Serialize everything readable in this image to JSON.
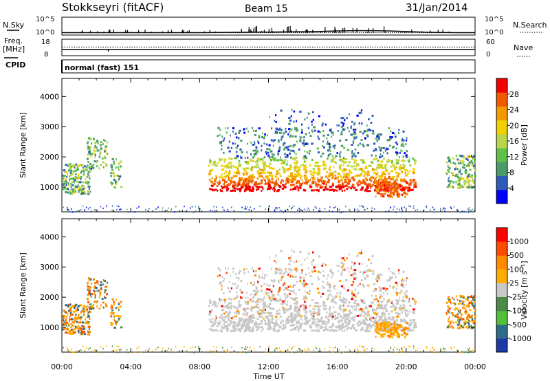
{
  "header": {
    "station": "Stokkseyri (fitACF)",
    "beam": "Beam 15",
    "date": "31/Jan/2014"
  },
  "left_labels": {
    "nsky": "N.Sky",
    "freq": "Freq.",
    "freq_unit": "[MHz]",
    "cpid": "CPID"
  },
  "right_labels": {
    "nsearch": "N.Search",
    "nave": "Nave"
  },
  "cpid_text": "normal (fast) 151",
  "colors": {
    "power": [
      "#0000ff",
      "#2e5bb8",
      "#4a9a6a",
      "#5fc04a",
      "#b7d64b",
      "#f2d000",
      "#f29a00",
      "#f25a00",
      "#f20000"
    ],
    "velocity": [
      "#ff0000",
      "#ff4a00",
      "#ff8a00",
      "#ffae00",
      "#c8c8c8",
      "#4a8a44",
      "#52c03a",
      "#2e6b8a",
      "#1e3aa8"
    ],
    "ground_scatter": "#c8c8c8"
  },
  "chart_data": [
    {
      "type": "line",
      "name": "noise",
      "title": "",
      "ylabel_left": "N.Sky",
      "ylabel_right": "N.Search",
      "y_ticks_left": [
        "10^5",
        "10^0"
      ],
      "y_ticks_right": [
        "10^5",
        "10^0"
      ],
      "x_range_hours": [
        0,
        24
      ],
      "series": [
        {
          "name": "N.Sky",
          "x": [
            0,
            1,
            2,
            3,
            4,
            5,
            6,
            7,
            8,
            9,
            10,
            11,
            12,
            13,
            14,
            15,
            16,
            17,
            18,
            19,
            20,
            21,
            22,
            23,
            24
          ],
          "y_log10": [
            0.35,
            0.35,
            0.35,
            0.35,
            0.35,
            0.35,
            0.35,
            0.35,
            0.35,
            0.4,
            0.45,
            0.5,
            0.55,
            0.6,
            0.65,
            0.75,
            0.9,
            1.0,
            1.0,
            0.9,
            0.7,
            0.5,
            0.4,
            0.35,
            0.35
          ]
        }
      ]
    },
    {
      "type": "line",
      "name": "freq_nave",
      "ylabel_left": "Freq. [MHz]",
      "ylabel_right": "Nave",
      "y_ticks_left": [
        "18",
        "8"
      ],
      "y_ticks_right": [
        "60",
        "0"
      ],
      "x_range_hours": [
        0,
        24
      ],
      "series": [
        {
          "name": "Freq.",
          "x": [
            0,
            24
          ],
          "y": [
            11.8,
            11.8
          ]
        },
        {
          "name": "Nave",
          "x": [
            0,
            24
          ],
          "y": [
            33,
            33
          ]
        }
      ]
    },
    {
      "type": "heatmap",
      "name": "power",
      "ylabel": "Slant Range [km]",
      "xlabel": "Time UT",
      "x_ticks": [
        "00:00",
        "04:00",
        "08:00",
        "12:00",
        "16:00",
        "20:00",
        "00:00"
      ],
      "y_ticks": [
        "1000",
        "2000",
        "3000",
        "4000"
      ],
      "y_range_km": [
        180,
        4600
      ],
      "colorbar_label": "Power [dB]",
      "colorbar_ticks": [
        "4",
        "8",
        "12",
        "16",
        "20",
        "24",
        "28"
      ],
      "colorbar_range": [
        0,
        30
      ]
    },
    {
      "type": "heatmap",
      "name": "velocity",
      "ylabel": "Slant Range [km]",
      "xlabel": "Time UT",
      "x_ticks": [
        "00:00",
        "04:00",
        "08:00",
        "12:00",
        "16:00",
        "20:00",
        "00:00"
      ],
      "y_ticks": [
        "1000",
        "2000",
        "3000",
        "4000"
      ],
      "y_range_km": [
        180,
        4600
      ],
      "colorbar_label": "Velocity [m s⁻¹]",
      "colorbar_ticks": [
        "1000",
        "500",
        "100",
        "25",
        "-25",
        "-100",
        "-500",
        "-1000"
      ]
    }
  ],
  "axes": {
    "time_label": "Time UT",
    "range_label": "Slant Range [km]",
    "power_cb_label": "Power [dB]",
    "vel_cb_label": "Velocity [m s⁻¹]"
  }
}
